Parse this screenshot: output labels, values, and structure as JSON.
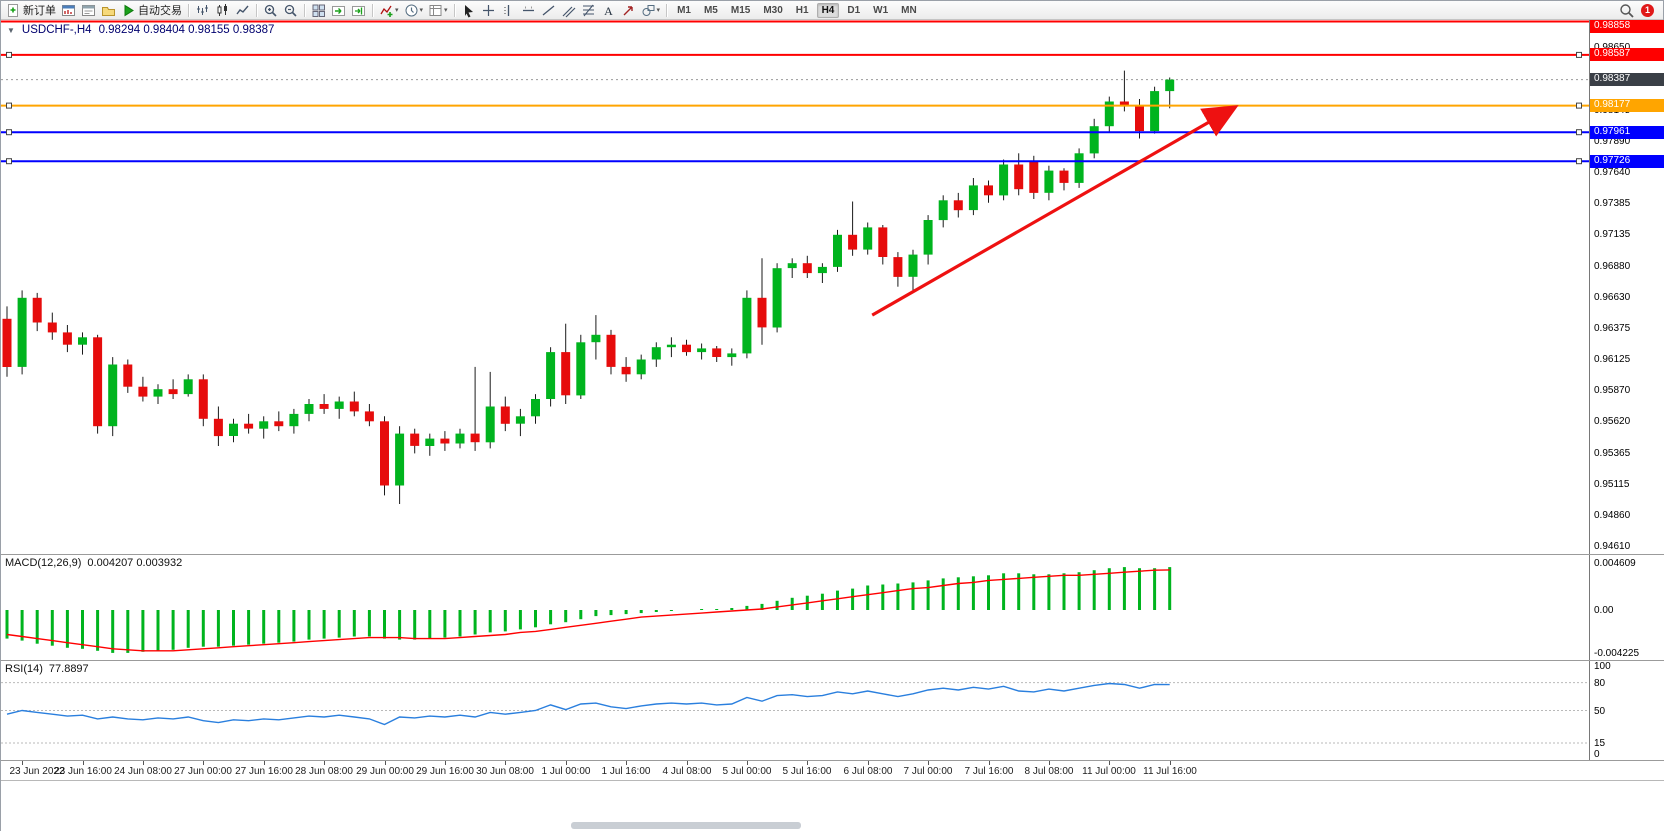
{
  "toolbar": {
    "new_order_label": "新订单",
    "autotrade_label": "自动交易",
    "timeframe_labels": [
      "M1",
      "M5",
      "M15",
      "M30",
      "H1",
      "H4",
      "D1",
      "W1",
      "MN"
    ],
    "active_timeframe": "H4",
    "notification_count": "1",
    "icon_groups": [
      {
        "items": [
          {
            "name": "new-order-button",
            "glyph": "doc",
            "label_key": "new_order_label"
          },
          {
            "name": "market-watch-icon",
            "glyph": "mw"
          },
          {
            "name": "data-window-icon",
            "glyph": "dw"
          },
          {
            "name": "navigator-icon",
            "glyph": "nav"
          },
          {
            "name": "autotrade-button",
            "glyph": "play",
            "label_key": "autotrade_label"
          }
        ]
      },
      {
        "items": [
          {
            "name": "bar-chart-icon",
            "glyph": "barchart"
          },
          {
            "name": "candlestick-chart-icon",
            "glyph": "candle"
          },
          {
            "name": "line-chart-icon",
            "glyph": "linechart"
          }
        ]
      },
      {
        "items": [
          {
            "name": "zoom-in-icon",
            "glyph": "zoomin"
          },
          {
            "name": "zoom-out-icon",
            "glyph": "zoomout"
          }
        ]
      },
      {
        "items": [
          {
            "name": "tile-windows-icon",
            "glyph": "tile"
          },
          {
            "name": "auto-scroll-icon",
            "glyph": "autoscroll"
          },
          {
            "name": "chart-shift-icon",
            "glyph": "shift"
          }
        ]
      },
      {
        "items": [
          {
            "name": "indicators-icon",
            "glyph": "indicators",
            "dropdown": true
          },
          {
            "name": "periods-icon",
            "glyph": "clock",
            "dropdown": true
          },
          {
            "name": "templates-icon",
            "glyph": "template",
            "dropdown": true
          }
        ]
      },
      {
        "items": [
          {
            "name": "cursor-icon",
            "glyph": "cursor"
          },
          {
            "name": "crosshair-icon",
            "glyph": "crosshair"
          },
          {
            "name": "vertical-line-icon",
            "glyph": "vline"
          },
          {
            "name": "horizontal-line-icon",
            "glyph": "hline"
          },
          {
            "name": "trendline-icon",
            "glyph": "trend"
          },
          {
            "name": "channel-icon",
            "glyph": "channel"
          },
          {
            "name": "fibonacci-icon",
            "glyph": "fibo"
          },
          {
            "name": "text-icon",
            "glyph": "text"
          },
          {
            "name": "arrow-label-icon",
            "glyph": "arrowicon"
          },
          {
            "name": "shapes-icon",
            "glyph": "shapes",
            "dropdown": true
          }
        ]
      }
    ]
  },
  "chart": {
    "symbol_period": "USDCHF-,H4",
    "ohlc_text": "0.98294 0.98404 0.98155 0.98387",
    "collapse_glyph": "▼"
  },
  "chart_data": {
    "type": "candlestick",
    "symbol": "USDCHF",
    "period": "H4",
    "bull_color": "#00b41e",
    "bear_color": "#e60c0c",
    "wick_color": "#1a1a1a",
    "price_range": {
      "top": 0.9887,
      "bottom": 0.94545
    },
    "grid_price_labels": [
      "0.98650",
      "0.98395",
      "0.98145",
      "0.97890",
      "0.97640",
      "0.97385",
      "0.97135",
      "0.96880",
      "0.96630",
      "0.96375",
      "0.96125",
      "0.95870",
      "0.95620",
      "0.95365",
      "0.95115",
      "0.94860",
      "0.94610"
    ],
    "time_labels": [
      "23 Jun 2022",
      "23 Jun 16:00",
      "24 Jun 08:00",
      "27 Jun 00:00",
      "27 Jun 16:00",
      "28 Jun 08:00",
      "29 Jun 00:00",
      "29 Jun 16:00",
      "30 Jun 08:00",
      "1 Jul 00:00",
      "1 Jul 16:00",
      "4 Jul 08:00",
      "5 Jul 00:00",
      "5 Jul 16:00",
      "6 Jul 08:00",
      "7 Jul 00:00",
      "7 Jul 16:00",
      "8 Jul 08:00",
      "11 Jul 00:00",
      "11 Jul 16:00"
    ],
    "candles": [
      [
        0.9645,
        0.9655,
        0.9598,
        0.9606
      ],
      [
        0.9606,
        0.9668,
        0.96,
        0.9662
      ],
      [
        0.9662,
        0.9666,
        0.9635,
        0.9642
      ],
      [
        0.9642,
        0.965,
        0.9628,
        0.9634
      ],
      [
        0.9634,
        0.964,
        0.9618,
        0.9624
      ],
      [
        0.9624,
        0.9634,
        0.9616,
        0.963
      ],
      [
        0.963,
        0.9632,
        0.9552,
        0.9558
      ],
      [
        0.9558,
        0.9614,
        0.955,
        0.9608
      ],
      [
        0.9608,
        0.9612,
        0.9585,
        0.959
      ],
      [
        0.959,
        0.9598,
        0.9578,
        0.9582
      ],
      [
        0.9582,
        0.9592,
        0.9576,
        0.9588
      ],
      [
        0.9588,
        0.9596,
        0.958,
        0.9584
      ],
      [
        0.9584,
        0.96,
        0.9582,
        0.9596
      ],
      [
        0.9596,
        0.96,
        0.9558,
        0.9564
      ],
      [
        0.9564,
        0.9574,
        0.9542,
        0.955
      ],
      [
        0.955,
        0.9564,
        0.9545,
        0.956
      ],
      [
        0.956,
        0.9568,
        0.9552,
        0.9556
      ],
      [
        0.9556,
        0.9566,
        0.9548,
        0.9562
      ],
      [
        0.9562,
        0.957,
        0.9554,
        0.9558
      ],
      [
        0.9558,
        0.9572,
        0.9552,
        0.9568
      ],
      [
        0.9568,
        0.958,
        0.9562,
        0.9576
      ],
      [
        0.9576,
        0.9584,
        0.9568,
        0.9572
      ],
      [
        0.9572,
        0.9582,
        0.9564,
        0.9578
      ],
      [
        0.9578,
        0.9586,
        0.9566,
        0.957
      ],
      [
        0.957,
        0.9576,
        0.9558,
        0.9562
      ],
      [
        0.9562,
        0.9566,
        0.9502,
        0.951
      ],
      [
        0.951,
        0.9558,
        0.9495,
        0.9552
      ],
      [
        0.9552,
        0.9556,
        0.9536,
        0.9542
      ],
      [
        0.9542,
        0.9552,
        0.9534,
        0.9548
      ],
      [
        0.9548,
        0.9554,
        0.9538,
        0.9544
      ],
      [
        0.9544,
        0.9556,
        0.954,
        0.9552
      ],
      [
        0.9552,
        0.9606,
        0.9538,
        0.9545
      ],
      [
        0.9545,
        0.9602,
        0.954,
        0.9574
      ],
      [
        0.9574,
        0.9582,
        0.9554,
        0.956
      ],
      [
        0.956,
        0.9572,
        0.955,
        0.9566
      ],
      [
        0.9566,
        0.9584,
        0.956,
        0.958
      ],
      [
        0.958,
        0.9622,
        0.9574,
        0.9618
      ],
      [
        0.9618,
        0.9641,
        0.9576,
        0.9583
      ],
      [
        0.9583,
        0.9632,
        0.958,
        0.9626
      ],
      [
        0.9626,
        0.9648,
        0.9612,
        0.9632
      ],
      [
        0.9632,
        0.9636,
        0.96,
        0.9606
      ],
      [
        0.9606,
        0.9614,
        0.9594,
        0.96
      ],
      [
        0.96,
        0.9616,
        0.9596,
        0.9612
      ],
      [
        0.9612,
        0.9626,
        0.9606,
        0.9622
      ],
      [
        0.9622,
        0.963,
        0.9614,
        0.9624
      ],
      [
        0.9624,
        0.9628,
        0.9615,
        0.9618
      ],
      [
        0.9618,
        0.9625,
        0.9612,
        0.9621
      ],
      [
        0.9621,
        0.9623,
        0.961,
        0.9614
      ],
      [
        0.9614,
        0.9621,
        0.9607,
        0.9617
      ],
      [
        0.9617,
        0.9668,
        0.9613,
        0.9662
      ],
      [
        0.9662,
        0.9694,
        0.9624,
        0.9638
      ],
      [
        0.9638,
        0.969,
        0.9634,
        0.9686
      ],
      [
        0.9686,
        0.9694,
        0.9678,
        0.969
      ],
      [
        0.969,
        0.9696,
        0.9678,
        0.9682
      ],
      [
        0.9682,
        0.969,
        0.9674,
        0.9687
      ],
      [
        0.9687,
        0.9717,
        0.9683,
        0.9713
      ],
      [
        0.9713,
        0.974,
        0.9696,
        0.9701
      ],
      [
        0.9701,
        0.9723,
        0.9697,
        0.9719
      ],
      [
        0.9719,
        0.9721,
        0.9689,
        0.9695
      ],
      [
        0.9695,
        0.9699,
        0.9671,
        0.9679
      ],
      [
        0.9679,
        0.9701,
        0.9666,
        0.9697
      ],
      [
        0.9697,
        0.9729,
        0.9689,
        0.9725
      ],
      [
        0.9725,
        0.9745,
        0.9719,
        0.9741
      ],
      [
        0.9741,
        0.9747,
        0.9727,
        0.9733
      ],
      [
        0.9733,
        0.9759,
        0.9729,
        0.9753
      ],
      [
        0.9753,
        0.9757,
        0.9739,
        0.9745
      ],
      [
        0.9745,
        0.9774,
        0.9741,
        0.977
      ],
      [
        0.977,
        0.9779,
        0.9745,
        0.975
      ],
      [
        0.9772,
        0.9777,
        0.9742,
        0.9747
      ],
      [
        0.9747,
        0.9769,
        0.9741,
        0.9765
      ],
      [
        0.9765,
        0.9767,
        0.9749,
        0.9755
      ],
      [
        0.9755,
        0.9783,
        0.9751,
        0.9779
      ],
      [
        0.9779,
        0.9807,
        0.9775,
        0.9801
      ],
      [
        0.9801,
        0.9825,
        0.9796,
        0.9821
      ],
      [
        0.9821,
        0.9846,
        0.9813,
        0.9817
      ],
      [
        0.9817,
        0.9823,
        0.9791,
        0.9797
      ],
      [
        0.9797,
        0.9833,
        0.9795,
        0.98294
      ],
      [
        0.98294,
        0.98404,
        0.98155,
        0.98387
      ]
    ],
    "hlines": [
      {
        "price": 0.98858,
        "badge": "0.98858",
        "color": "#ff0000",
        "width": 2,
        "handles": false
      },
      {
        "price": 0.98587,
        "badge": "0.98587",
        "color": "#ff0000",
        "width": 2,
        "handles": true
      },
      {
        "price": 0.98177,
        "badge": "0.98177",
        "color": "#ffa500",
        "width": 2,
        "handles": true
      },
      {
        "price": 0.97961,
        "badge": "0.97961",
        "color": "#0000ff",
        "width": 2,
        "handles": true
      },
      {
        "price": 0.97726,
        "badge": "0.97726",
        "color": "#0000ff",
        "width": 2,
        "handles": true
      }
    ],
    "current_price": {
      "value": 0.98387,
      "badge": "0.98387",
      "color": "#3a3f46"
    },
    "trend_arrow": {
      "from": {
        "index": 57.3,
        "price": 0.9648
      },
      "to": {
        "index": 81.2,
        "price": 0.98155
      },
      "color": "#ee1111"
    },
    "indicators": {
      "macd": {
        "label": "MACD(12,26,9)",
        "values_text": "0.004207 0.003932",
        "hist_color": "#00b41e",
        "signal_color": "#ff0000",
        "range": {
          "top": 0.00539,
          "bottom": -0.0049
        },
        "scale_labels": [
          {
            "v": 0.004609,
            "t": "0.004609"
          },
          {
            "v": 0,
            "t": "0.00"
          },
          {
            "v": -0.004225,
            "t": "-0.004225"
          }
        ],
        "histogram": [
          -0.0028,
          -0.003,
          -0.0033,
          -0.0035,
          -0.0037,
          -0.0038,
          -0.004,
          -0.0042,
          -0.0042,
          -0.0041,
          -0.004,
          -0.0039,
          -0.0037,
          -0.0036,
          -0.0036,
          -0.0035,
          -0.0034,
          -0.0033,
          -0.0032,
          -0.0031,
          -0.0029,
          -0.0028,
          -0.0027,
          -0.0026,
          -0.0026,
          -0.0028,
          -0.0029,
          -0.0029,
          -0.0028,
          -0.0027,
          -0.0026,
          -0.0024,
          -0.0022,
          -0.0021,
          -0.0019,
          -0.0017,
          -0.0014,
          -0.0012,
          -0.0009,
          -0.0006,
          -0.0005,
          -0.0004,
          -0.0003,
          -0.0002,
          -0.0001,
          0.0,
          0.0001,
          0.0001,
          0.0002,
          0.0004,
          0.0006,
          0.0009,
          0.0012,
          0.0014,
          0.0016,
          0.0019,
          0.0021,
          0.0024,
          0.0025,
          0.0026,
          0.0027,
          0.0029,
          0.0031,
          0.0032,
          0.0033,
          0.0034,
          0.0036,
          0.0036,
          0.0035,
          0.0035,
          0.0036,
          0.0037,
          0.0039,
          0.0041,
          0.0042,
          0.0041,
          0.0041,
          0.004207
        ],
        "signal": [
          -0.0024,
          -0.0026,
          -0.0028,
          -0.003,
          -0.0032,
          -0.0034,
          -0.0036,
          -0.0038,
          -0.0039,
          -0.004,
          -0.004,
          -0.004,
          -0.0039,
          -0.0038,
          -0.0037,
          -0.0036,
          -0.0035,
          -0.0034,
          -0.0033,
          -0.0032,
          -0.0031,
          -0.003,
          -0.0029,
          -0.0028,
          -0.0027,
          -0.0027,
          -0.0027,
          -0.0028,
          -0.0028,
          -0.0028,
          -0.0027,
          -0.0026,
          -0.0025,
          -0.0024,
          -0.0022,
          -0.0021,
          -0.0019,
          -0.0017,
          -0.0015,
          -0.0013,
          -0.0011,
          -0.0009,
          -0.0007,
          -0.0006,
          -0.0005,
          -0.0004,
          -0.0003,
          -0.0002,
          -0.0001,
          0.0,
          0.0001,
          0.0003,
          0.0005,
          0.0007,
          0.0009,
          0.0011,
          0.0013,
          0.0015,
          0.0017,
          0.0019,
          0.0021,
          0.0022,
          0.0024,
          0.0026,
          0.0027,
          0.0029,
          0.003,
          0.0031,
          0.0032,
          0.0033,
          0.0034,
          0.0034,
          0.0035,
          0.0036,
          0.0037,
          0.0038,
          0.0039,
          0.003932
        ]
      },
      "rsi": {
        "label": "RSI(14)",
        "value_text": "77.8897",
        "color": "#2a7fde",
        "levels": [
          80,
          50,
          15
        ],
        "scale_labels": [
          {
            "v": 100,
            "t": "100"
          },
          {
            "v": 80,
            "t": "80"
          },
          {
            "v": 50,
            "t": "50"
          },
          {
            "v": 15,
            "t": "15"
          },
          {
            "v": 0,
            "t": "0"
          }
        ],
        "values": [
          46,
          50,
          48,
          46,
          44,
          45,
          41,
          43,
          41,
          40,
          42,
          41,
          43,
          39,
          37,
          40,
          39,
          41,
          40,
          42,
          44,
          43,
          45,
          43,
          41,
          35,
          43,
          42,
          44,
          43,
          45,
          43,
          48,
          46,
          48,
          50,
          56,
          51,
          57,
          58,
          54,
          52,
          55,
          57,
          58,
          57,
          58,
          56,
          57,
          64,
          60,
          66,
          67,
          65,
          66,
          70,
          68,
          71,
          68,
          65,
          68,
          72,
          74,
          72,
          75,
          73,
          76,
          71,
          70,
          73,
          71,
          74,
          77,
          79,
          78,
          74,
          78,
          77.89
        ]
      }
    }
  }
}
